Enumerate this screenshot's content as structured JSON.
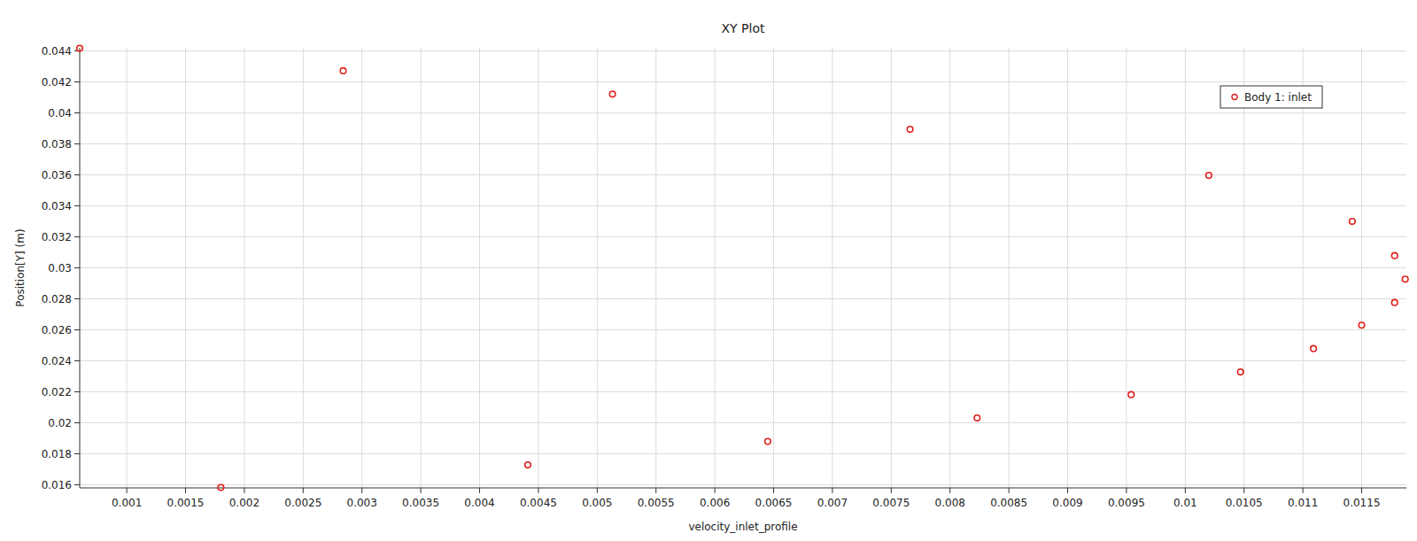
{
  "chart_data": {
    "type": "scatter",
    "title": "XY Plot",
    "x_label": "velocity_inlet_profile",
    "y_label": "Position[Y] (m)",
    "series": [
      {
        "name": "Body 1: inlet",
        "color": "#e0201b",
        "marker": "circle",
        "x": [
          0.0006,
          0.00284,
          0.00513,
          0.00766,
          0.0102,
          0.01142,
          0.01178,
          0.01187,
          0.01178,
          0.0115,
          0.01109,
          0.01047,
          0.00954,
          0.00823,
          0.00645,
          0.00441,
          0.0018
        ],
        "values": [
          0.04417,
          0.04272,
          0.04121,
          0.03894,
          0.03597,
          0.033,
          0.03079,
          0.02927,
          0.02776,
          0.0263,
          0.02479,
          0.02328,
          0.02182,
          0.02031,
          0.0188,
          0.01728,
          0.01583
        ]
      }
    ],
    "xlim": [
      0.0006,
      0.01188
    ],
    "ylim": [
      0.0158,
      0.0442
    ],
    "xticks": [
      0.001,
      0.0015,
      0.002,
      0.0025,
      0.003,
      0.0035,
      0.004,
      0.0045,
      0.005,
      0.0055,
      0.006,
      0.0065,
      0.007,
      0.0075,
      0.008,
      0.0085,
      0.009,
      0.0095,
      0.01,
      0.0105,
      0.011,
      0.0115
    ],
    "yticks": [
      0.016,
      0.018,
      0.02,
      0.022,
      0.024,
      0.026,
      0.028,
      0.03,
      0.032,
      0.034,
      0.036,
      0.038,
      0.04,
      0.042,
      0.044
    ],
    "grid": true,
    "legend": "upper-right"
  }
}
